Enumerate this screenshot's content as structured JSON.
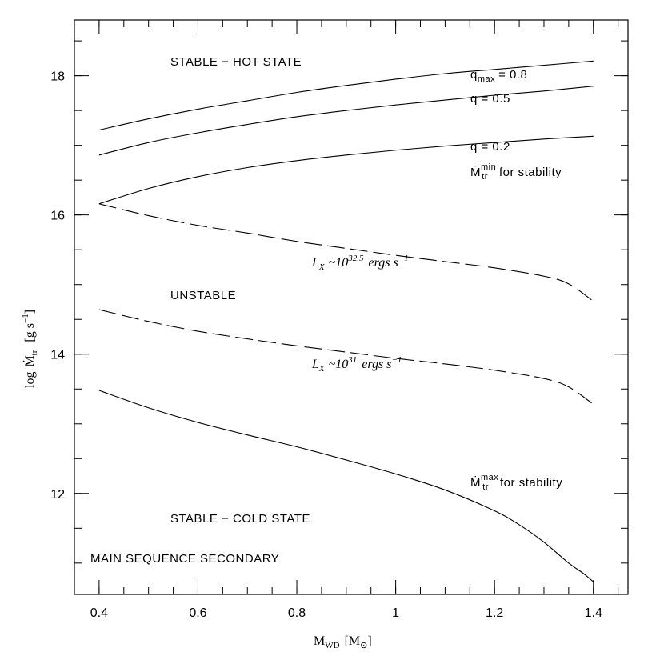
{
  "chart_data": {
    "type": "line",
    "title": "",
    "xlabel": "M_WD [M_⊙]",
    "xlabel_parts": {
      "main": "M",
      "sub": "WD",
      "bracket_open": "[M",
      "bracket_sub": "⊙",
      "bracket_close": "]"
    },
    "ylabel": "log Ṁ_tr [g s⁻¹]",
    "ylabel_parts": {
      "log": "log",
      "main": "Ṁ",
      "sub": "tr",
      "unit_open": "[g s",
      "unit_sup": "−1",
      "unit_close": "]"
    },
    "xlim": [
      0.35,
      1.47
    ],
    "ylim": [
      10.55,
      18.8
    ],
    "xticks": [
      {
        "value": 0.4,
        "label": "0.4"
      },
      {
        "value": 0.6,
        "label": "0.6"
      },
      {
        "value": 0.8,
        "label": "0.8"
      },
      {
        "value": 1.0,
        "label": "1"
      },
      {
        "value": 1.2,
        "label": "1.2"
      },
      {
        "value": 1.4,
        "label": "1.4"
      }
    ],
    "yticks": [
      {
        "value": 12,
        "label": "12"
      },
      {
        "value": 14,
        "label": "14"
      },
      {
        "value": 16,
        "label": "16"
      },
      {
        "value": 18,
        "label": "18"
      }
    ],
    "grid": false,
    "series": [
      {
        "style": "solid",
        "x": [
          0.4,
          0.5,
          0.6,
          0.7,
          0.8,
          0.9,
          1.0,
          1.1,
          1.2,
          1.3,
          1.4
        ],
        "y": [
          17.22,
          17.38,
          17.52,
          17.64,
          17.76,
          17.86,
          17.95,
          18.03,
          18.09,
          18.15,
          18.21
        ]
      },
      {
        "style": "solid",
        "x": [
          0.4,
          0.5,
          0.6,
          0.7,
          0.8,
          0.9,
          1.0,
          1.1,
          1.2,
          1.3,
          1.4
        ],
        "y": [
          16.86,
          17.04,
          17.18,
          17.3,
          17.41,
          17.5,
          17.58,
          17.65,
          17.72,
          17.78,
          17.85
        ]
      },
      {
        "style": "solid",
        "x": [
          0.4,
          0.5,
          0.6,
          0.7,
          0.8,
          0.9,
          1.0,
          1.1,
          1.2,
          1.3,
          1.4
        ],
        "y": [
          16.16,
          16.38,
          16.55,
          16.68,
          16.78,
          16.86,
          16.93,
          16.99,
          17.04,
          17.09,
          17.13
        ]
      },
      {
        "style": "dashed",
        "x": [
          0.4,
          0.5,
          0.6,
          0.7,
          0.8,
          0.9,
          1.0,
          1.1,
          1.2,
          1.3,
          1.35,
          1.4
        ],
        "y": [
          16.16,
          15.99,
          15.85,
          15.74,
          15.62,
          15.52,
          15.42,
          15.33,
          15.24,
          15.12,
          15.01,
          14.76
        ]
      },
      {
        "style": "dashed",
        "x": [
          0.4,
          0.5,
          0.6,
          0.7,
          0.8,
          0.9,
          1.0,
          1.1,
          1.2,
          1.3,
          1.35,
          1.4
        ],
        "y": [
          14.64,
          14.47,
          14.33,
          14.22,
          14.12,
          14.03,
          13.94,
          13.86,
          13.77,
          13.65,
          13.53,
          13.28
        ]
      },
      {
        "style": "solid",
        "x": [
          0.4,
          0.5,
          0.6,
          0.7,
          0.8,
          0.9,
          1.0,
          1.1,
          1.2,
          1.25,
          1.3,
          1.35,
          1.38,
          1.4
        ],
        "y": [
          13.48,
          13.23,
          13.02,
          12.84,
          12.67,
          12.48,
          12.28,
          12.05,
          11.75,
          11.55,
          11.3,
          11.0,
          10.85,
          10.73
        ]
      }
    ],
    "annotations": {
      "hot": "STABLE − HOT STATE",
      "qmax_main": "q",
      "qmax_sub": "max",
      "qmax_val": "= 0.8",
      "q05": "q = 0.5",
      "q02": "q = 0.2",
      "mmin_main": "Ṁ",
      "mmin_sup": "min",
      "mmin_sub": "tr",
      "mmin_text": "for stability",
      "lx325_main": "L",
      "lx325_sub": "X",
      "lx325_pre": "~10",
      "lx325_exp": "32.5",
      "lx325_unit": "ergs s",
      "lx325_unit_exp": "−1",
      "unstable": "UNSTABLE",
      "lx31_main": "L",
      "lx31_sub": "X",
      "lx31_pre": "~10",
      "lx31_exp": "31",
      "lx31_unit": "ergs s",
      "lx31_unit_exp": "−1",
      "mmax_main": "Ṁ",
      "mmax_sup": "max",
      "mmax_sub": "tr",
      "mmax_text": "for stability",
      "cold": "STABLE − COLD STATE",
      "secondary": "MAIN SEQUENCE SECONDARY"
    }
  }
}
